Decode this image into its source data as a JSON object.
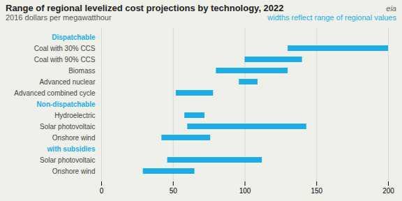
{
  "chart_data": {
    "type": "bar",
    "orientation": "horizontal",
    "title": "Range of regional levelized cost projections by technology, 2022",
    "subtitle": "2016 dollars per megawatthour",
    "annotations": [
      "widths reflect range of regional values",
      "eia"
    ],
    "categories": [
      "Dispatchable",
      "Coal with 30% CCS",
      "Coal with 90% CCS",
      "Biomass",
      "Advanced nuclear",
      "Advanced combined cycle",
      "Non-dispatchable",
      "Hydroelectric",
      "Solar photovoltaic",
      "Onshore wind",
      "with subsidies",
      "Solar photovoltaic",
      "Onshore wind"
    ],
    "values": [
      null,
      [
        130,
        200
      ],
      [
        100,
        140
      ],
      [
        80,
        130
      ],
      [
        96,
        109
      ],
      [
        52,
        78
      ],
      null,
      [
        58,
        72
      ],
      [
        60,
        143
      ],
      [
        42,
        76
      ],
      null,
      [
        46,
        112
      ],
      [
        29,
        65
      ]
    ],
    "color": "#1aaee5",
    "xlim": [
      0,
      200
    ],
    "xticks": [
      0,
      50,
      100,
      150,
      200
    ],
    "grid": true
  }
}
